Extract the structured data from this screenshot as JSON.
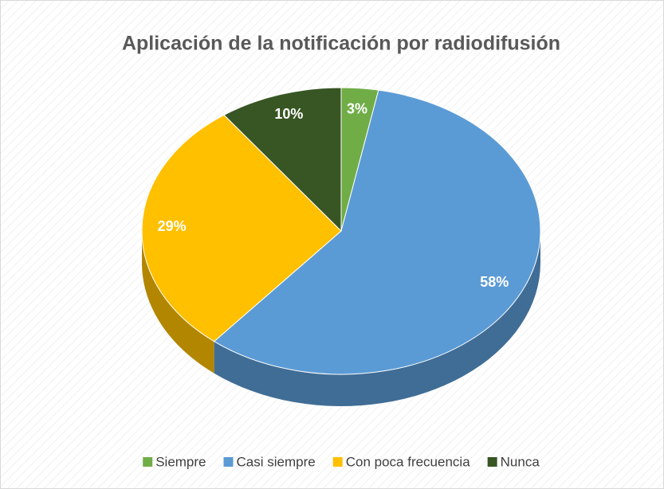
{
  "chart_data": {
    "type": "pie",
    "title": "Aplicación de la notificación por radiodifusión",
    "categories": [
      "Siempre",
      "Casi siempre",
      "Con poca frecuencia",
      "Nunca"
    ],
    "values": [
      3,
      58,
      29,
      10
    ],
    "value_labels": [
      "3%",
      "58%",
      "29%",
      "10%"
    ],
    "colors": [
      "#70ad47",
      "#5b9bd5",
      "#ffc000",
      "#375623"
    ],
    "legend": "bottom"
  }
}
